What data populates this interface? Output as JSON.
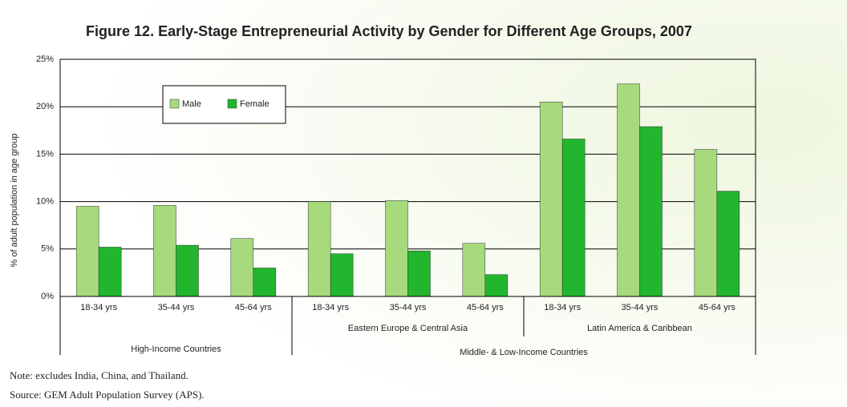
{
  "chart_data": {
    "type": "bar",
    "title": "Figure 12. Early-Stage Entrepreneurial Activity by Gender for Different Age Groups, 2007",
    "ylabel": "% of adult population in age group",
    "category_groups": [
      {
        "name": "High-Income Countries",
        "categories": [
          "18-34 yrs",
          "35-44 yrs",
          "45-64 yrs"
        ]
      },
      {
        "name": "Middle- & Low-Income Countries",
        "subgroups": [
          {
            "name": "Eastern Europe & Central Asia",
            "categories": [
              "18-34 yrs",
              "35-44 yrs",
              "45-64 yrs"
            ]
          },
          {
            "name": "Latin America & Caribbean",
            "categories": [
              "18-34 yrs",
              "35-44 yrs",
              "45-64 yrs"
            ]
          }
        ]
      }
    ],
    "series": [
      {
        "name": "Male",
        "color": "#a6da7c",
        "values": [
          9.5,
          9.6,
          6.1,
          10.0,
          10.1,
          5.6,
          20.5,
          22.4,
          15.5
        ]
      },
      {
        "name": "Female",
        "color": "#22b52e",
        "values": [
          5.2,
          5.4,
          3.0,
          4.5,
          4.8,
          2.3,
          16.6,
          17.9,
          11.1
        ]
      }
    ],
    "ylim": [
      0,
      25
    ],
    "yticks": [
      {
        "value": 0,
        "label": "0%"
      },
      {
        "value": 5,
        "label": "5%"
      },
      {
        "value": 10,
        "label": "10%"
      },
      {
        "value": 15,
        "label": "15%"
      },
      {
        "value": 20,
        "label": "20%"
      },
      {
        "value": 25,
        "label": "25%"
      }
    ],
    "grid": true,
    "legend": "upper left",
    "notes": [
      "Note: excludes India, China, and Thailand.",
      "Source: GEM Adult Population Survey (APS)."
    ]
  }
}
